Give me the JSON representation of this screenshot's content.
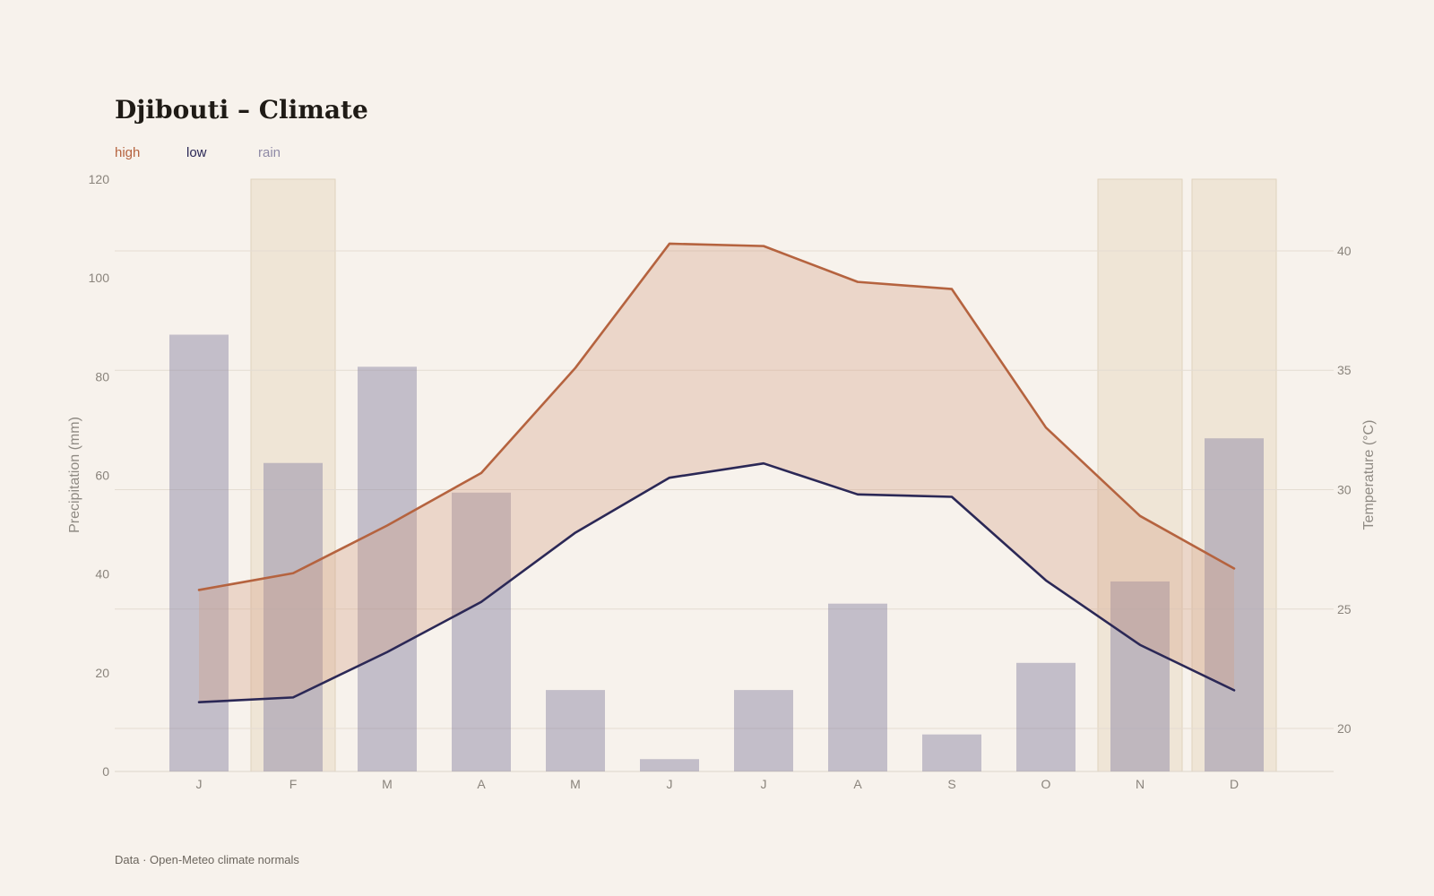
{
  "chart_data": {
    "type": "bar",
    "title": "Djibouti – Climate",
    "source": "Data · Open-Meteo climate normals",
    "categories": [
      "J",
      "F",
      "M",
      "A",
      "M",
      "J",
      "J",
      "A",
      "S",
      "O",
      "N",
      "D"
    ],
    "legend": [
      {
        "label": "high",
        "color": "#b5633f"
      },
      {
        "label": "low",
        "color": "#2b2856"
      },
      {
        "label": "rain",
        "color": "#8f8aa6"
      }
    ],
    "left_axis": {
      "label": "Precipitation (mm)",
      "range": [
        0,
        120
      ],
      "ticks": [
        0,
        20,
        40,
        60,
        80,
        100,
        120
      ]
    },
    "right_axis": {
      "label": "Temperature (°C)",
      "range": [
        18.2,
        43
      ],
      "ticks": [
        20,
        25,
        30,
        35,
        40
      ]
    },
    "highlighted_months": [
      1,
      10,
      11
    ],
    "series": [
      {
        "name": "rain",
        "type": "bar",
        "axis": "left",
        "color": "#8f8aa6",
        "values": [
          88.5,
          62.5,
          82,
          56.5,
          16.5,
          2.5,
          16.5,
          34,
          7.5,
          22,
          38.5,
          67.5
        ]
      },
      {
        "name": "high",
        "type": "line",
        "axis": "right",
        "color": "#b5633f",
        "values": [
          25.8,
          26.5,
          28.5,
          30.7,
          35.1,
          40.3,
          40.2,
          38.7,
          38.4,
          32.6,
          28.9,
          26.7
        ]
      },
      {
        "name": "low",
        "type": "line",
        "axis": "right",
        "color": "#2b2856",
        "values": [
          21.1,
          21.3,
          23.2,
          25.3,
          28.2,
          30.5,
          31.1,
          29.8,
          29.7,
          26.2,
          23.5,
          21.6
        ]
      }
    ],
    "grid": true
  }
}
